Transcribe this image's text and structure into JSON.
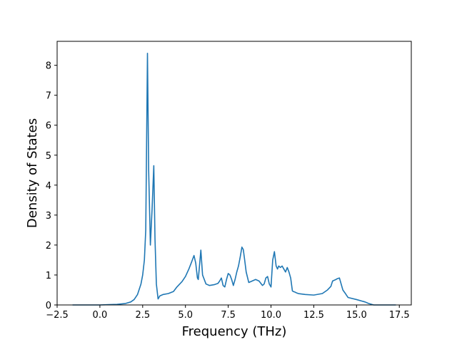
{
  "chart_data": {
    "type": "line",
    "title": "",
    "xlabel": "Frequency (THz)",
    "ylabel": "Density of States",
    "xlim": [
      -2.5,
      18.2
    ],
    "ylim": [
      0,
      8.8
    ],
    "xticks": [
      -2.5,
      0.0,
      2.5,
      5.0,
      7.5,
      10.0,
      12.5,
      15.0,
      17.5
    ],
    "xtick_labels": [
      "−2.5",
      "0.0",
      "2.5",
      "5.0",
      "7.5",
      "10.0",
      "12.5",
      "15.0",
      "17.5"
    ],
    "yticks": [
      0,
      1,
      2,
      3,
      4,
      5,
      6,
      7,
      8
    ],
    "ytick_labels": [
      "0",
      "1",
      "2",
      "3",
      "4",
      "5",
      "6",
      "7",
      "8"
    ],
    "grid": false,
    "series": [
      {
        "color": "#1f77b4",
        "x": [
          -1.6,
          -1.0,
          0.0,
          0.5,
          1.0,
          1.5,
          1.8,
          2.0,
          2.2,
          2.4,
          2.5,
          2.6,
          2.68,
          2.78,
          2.85,
          2.95,
          3.05,
          3.15,
          3.22,
          3.3,
          3.4,
          3.5,
          3.7,
          4.0,
          4.3,
          4.5,
          4.8,
          5.0,
          5.2,
          5.35,
          5.5,
          5.6,
          5.7,
          5.75,
          5.82,
          5.9,
          6.0,
          6.2,
          6.4,
          6.7,
          6.9,
          7.0,
          7.1,
          7.2,
          7.3,
          7.4,
          7.5,
          7.6,
          7.7,
          7.8,
          7.9,
          8.0,
          8.1,
          8.2,
          8.3,
          8.38,
          8.45,
          8.55,
          8.7,
          8.9,
          9.1,
          9.3,
          9.5,
          9.6,
          9.7,
          9.8,
          9.9,
          10.0,
          10.1,
          10.2,
          10.3,
          10.38,
          10.45,
          10.55,
          10.65,
          10.75,
          10.85,
          10.95,
          11.05,
          11.15,
          11.25,
          11.3,
          11.4,
          11.5,
          11.6,
          12.0,
          12.5,
          13.0,
          13.3,
          13.5,
          13.6,
          13.8,
          13.85,
          14.0,
          14.2,
          14.35,
          14.5,
          15.0,
          15.5,
          15.7,
          16.0,
          16.5,
          17.0,
          17.3
        ],
        "y": [
          0.0,
          0.0,
          0.0,
          0.01,
          0.02,
          0.05,
          0.1,
          0.18,
          0.35,
          0.7,
          1.0,
          1.5,
          2.5,
          8.4,
          4.5,
          2.0,
          3.2,
          4.65,
          2.2,
          0.7,
          0.2,
          0.3,
          0.35,
          0.38,
          0.45,
          0.6,
          0.78,
          0.95,
          1.2,
          1.42,
          1.65,
          1.4,
          0.9,
          0.85,
          1.3,
          1.83,
          1.0,
          0.7,
          0.65,
          0.68,
          0.72,
          0.8,
          0.9,
          0.65,
          0.6,
          0.85,
          1.05,
          1.0,
          0.85,
          0.65,
          0.85,
          1.1,
          1.3,
          1.6,
          1.93,
          1.85,
          1.55,
          1.1,
          0.75,
          0.8,
          0.85,
          0.8,
          0.65,
          0.7,
          0.9,
          0.95,
          0.7,
          0.6,
          1.5,
          1.78,
          1.3,
          1.2,
          1.3,
          1.25,
          1.3,
          1.2,
          1.1,
          1.25,
          1.1,
          0.9,
          0.47,
          0.45,
          0.43,
          0.4,
          0.38,
          0.35,
          0.33,
          0.38,
          0.5,
          0.62,
          0.8,
          0.85,
          0.87,
          0.9,
          0.5,
          0.38,
          0.25,
          0.18,
          0.1,
          0.05,
          0.0,
          0.0,
          0.0,
          0.0
        ]
      }
    ]
  }
}
